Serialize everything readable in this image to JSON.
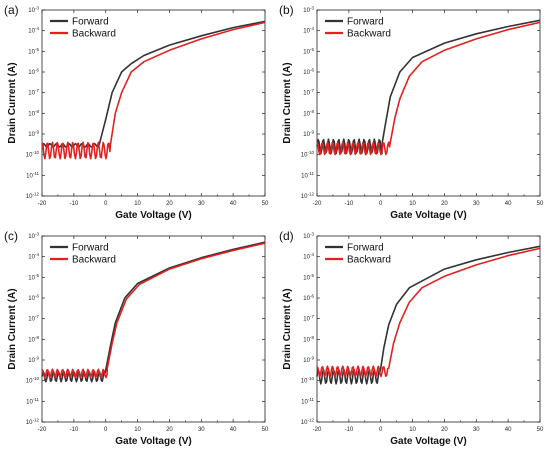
{
  "chart_data": [
    {
      "type": "line",
      "panel_label": "(a)",
      "xlabel": "Gate Voltage (V)",
      "ylabel": "Drain Current (A)",
      "xlim": [
        -20,
        50
      ],
      "ylim_exp": [
        -12,
        -3
      ],
      "yscale": "log",
      "xticks": [
        "-20",
        "-10",
        "0",
        "10",
        "20",
        "30",
        "40",
        "50"
      ],
      "yticks": [
        "10-12",
        "10-11",
        "10-10",
        "10-9",
        "10-8",
        "10-7",
        "10-6",
        "10-5",
        "10-4",
        "10-3"
      ],
      "legend_position": "top-left",
      "series": [
        {
          "name": "Forward",
          "color": "#333333",
          "noise": {
            "x_end": -2,
            "log_center": -9.55,
            "amp": 0.08,
            "period": 2.0
          },
          "points": [
            [
              -2,
              -9.5
            ],
            [
              0,
              -8.3
            ],
            [
              2,
              -7.0
            ],
            [
              5,
              -6.0
            ],
            [
              8,
              -5.6
            ],
            [
              12,
              -5.2
            ],
            [
              20,
              -4.7
            ],
            [
              30,
              -4.25
            ],
            [
              40,
              -3.85
            ],
            [
              50,
              -3.55
            ]
          ]
        },
        {
          "name": "Backward",
          "color": "#e32020",
          "noise": {
            "x_end": 1.5,
            "log_center": -9.8,
            "amp": 0.4,
            "period": 1.6
          },
          "points": [
            [
              1.5,
              -9.5
            ],
            [
              3,
              -8.0
            ],
            [
              5,
              -7.0
            ],
            [
              8,
              -6.0
            ],
            [
              12,
              -5.5
            ],
            [
              20,
              -4.95
            ],
            [
              30,
              -4.4
            ],
            [
              40,
              -3.95
            ],
            [
              50,
              -3.6
            ]
          ]
        }
      ]
    },
    {
      "type": "line",
      "panel_label": "(b)",
      "xlabel": "Gate Voltage (V)",
      "ylabel": "Drain Current (A)",
      "xlim": [
        -20,
        50
      ],
      "ylim_exp": [
        -12,
        -3
      ],
      "yscale": "log",
      "xticks": [
        "-20",
        "-10",
        "0",
        "10",
        "20",
        "30",
        "40",
        "50"
      ],
      "yticks": [
        "10-12",
        "10-11",
        "10-10",
        "10-9",
        "10-8",
        "10-7",
        "10-6",
        "10-5",
        "10-4",
        "10-3"
      ],
      "legend_position": "top-left",
      "series": [
        {
          "name": "Forward",
          "color": "#333333",
          "noise": {
            "x_end": 0.5,
            "log_center": -9.6,
            "amp": 0.35,
            "period": 1.6
          },
          "points": [
            [
              0.5,
              -9.4
            ],
            [
              1.5,
              -8.5
            ],
            [
              3,
              -7.2
            ],
            [
              6,
              -6.0
            ],
            [
              10,
              -5.3
            ],
            [
              20,
              -4.6
            ],
            [
              30,
              -4.15
            ],
            [
              40,
              -3.8
            ],
            [
              50,
              -3.5
            ]
          ]
        },
        {
          "name": "Backward",
          "color": "#e32020",
          "noise": {
            "x_end": 3,
            "log_center": -9.7,
            "amp": 0.3,
            "period": 1.6
          },
          "points": [
            [
              3,
              -9.4
            ],
            [
              4.5,
              -8.2
            ],
            [
              6,
              -7.3
            ],
            [
              9,
              -6.2
            ],
            [
              13,
              -5.5
            ],
            [
              20,
              -4.95
            ],
            [
              30,
              -4.4
            ],
            [
              40,
              -3.95
            ],
            [
              50,
              -3.6
            ]
          ]
        }
      ]
    },
    {
      "type": "line",
      "panel_label": "(c)",
      "xlabel": "Gate Voltage (V)",
      "ylabel": "Drain Current (A)",
      "xlim": [
        -20,
        50
      ],
      "ylim_exp": [
        -12,
        -3
      ],
      "yscale": "log",
      "xticks": [
        "-20",
        "-10",
        "0",
        "10",
        "20",
        "30",
        "40",
        "50"
      ],
      "yticks": [
        "10-12",
        "10-11",
        "10-10",
        "10-9",
        "10-8",
        "10-7",
        "10-6",
        "10-5",
        "10-4",
        "10-3"
      ],
      "legend_position": "top-left",
      "series": [
        {
          "name": "Forward",
          "color": "#333333",
          "noise": {
            "x_end": 0,
            "log_center": -9.8,
            "amp": 0.25,
            "period": 1.6
          },
          "points": [
            [
              0,
              -9.5
            ],
            [
              1.5,
              -8.3
            ],
            [
              3,
              -7.2
            ],
            [
              6,
              -6.0
            ],
            [
              10,
              -5.3
            ],
            [
              20,
              -4.55
            ],
            [
              30,
              -4.05
            ],
            [
              40,
              -3.65
            ],
            [
              50,
              -3.3
            ]
          ]
        },
        {
          "name": "Backward",
          "color": "#e32020",
          "noise": {
            "x_end": 0.5,
            "log_center": -9.65,
            "amp": 0.2,
            "period": 1.6
          },
          "points": [
            [
              0.5,
              -9.4
            ],
            [
              2,
              -8.2
            ],
            [
              3.5,
              -7.2
            ],
            [
              6.5,
              -6.05
            ],
            [
              10.5,
              -5.35
            ],
            [
              20,
              -4.6
            ],
            [
              30,
              -4.1
            ],
            [
              40,
              -3.7
            ],
            [
              50,
              -3.35
            ]
          ]
        }
      ]
    },
    {
      "type": "line",
      "panel_label": "(d)",
      "xlabel": "Gate Voltage (V)",
      "ylabel": "Drain Current (A)",
      "xlim": [
        -20,
        50
      ],
      "ylim_exp": [
        -12,
        -3
      ],
      "yscale": "log",
      "xticks": [
        "-20",
        "-10",
        "0",
        "10",
        "20",
        "30",
        "40",
        "50"
      ],
      "yticks": [
        "10-12",
        "10-11",
        "10-10",
        "10-9",
        "10-8",
        "10-7",
        "10-6",
        "10-5",
        "10-4",
        "10-3"
      ],
      "legend_position": "top-left",
      "series": [
        {
          "name": "Forward",
          "color": "#333333",
          "noise": {
            "x_end": 0,
            "log_center": -9.8,
            "amp": 0.35,
            "period": 1.6
          },
          "points": [
            [
              0,
              -9.4
            ],
            [
              1,
              -8.4
            ],
            [
              2.5,
              -7.3
            ],
            [
              5,
              -6.3
            ],
            [
              9,
              -5.5
            ],
            [
              20,
              -4.6
            ],
            [
              30,
              -4.15
            ],
            [
              40,
              -3.8
            ],
            [
              50,
              -3.5
            ]
          ]
        },
        {
          "name": "Backward",
          "color": "#e32020",
          "noise": {
            "x_end": 2.5,
            "log_center": -9.55,
            "amp": 0.25,
            "period": 1.6
          },
          "points": [
            [
              2.5,
              -9.4
            ],
            [
              4,
              -8.2
            ],
            [
              6,
              -7.2
            ],
            [
              9,
              -6.2
            ],
            [
              13,
              -5.5
            ],
            [
              20,
              -4.95
            ],
            [
              30,
              -4.4
            ],
            [
              40,
              -3.95
            ],
            [
              50,
              -3.6
            ]
          ]
        }
      ]
    }
  ]
}
